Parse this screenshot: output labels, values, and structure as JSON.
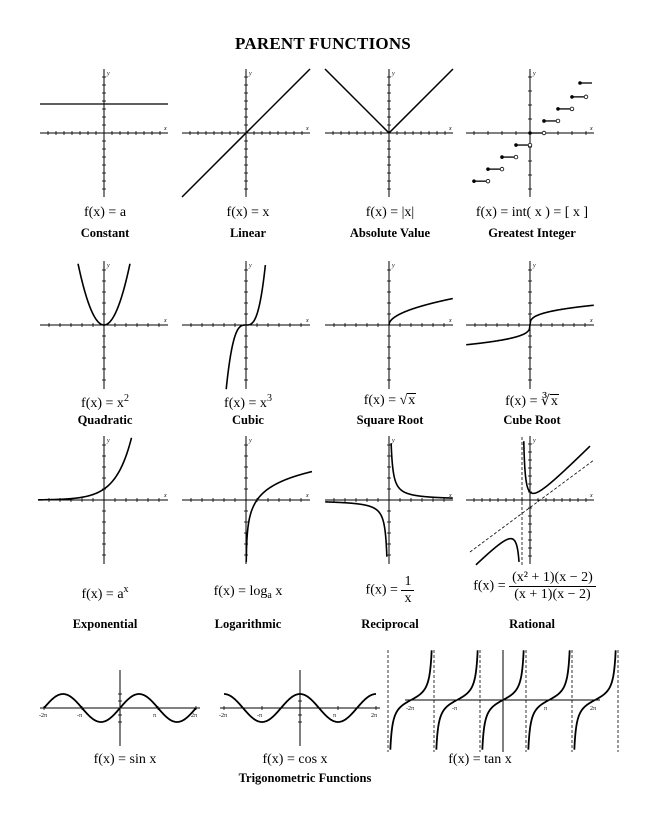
{
  "title": "PARENT FUNCTIONS",
  "functions": [
    {
      "formula": "f(x) = a",
      "label": "Constant"
    },
    {
      "formula": "f(x) = x",
      "label": "Linear"
    },
    {
      "formula": "f(x) = |x|",
      "label": "Absolute Value"
    },
    {
      "formula": "f(x) = int( x ) = [ x ]",
      "label": "Greatest Integer"
    },
    {
      "formula_prefix": "f(x) = x",
      "formula_exp": "2",
      "label": "Quadratic"
    },
    {
      "formula_prefix": "f(x) = x",
      "formula_exp": "3",
      "label": "Cubic"
    },
    {
      "formula_prefix": "f(x) = √",
      "formula_radicand": "x",
      "label": "Square Root"
    },
    {
      "formula_prefix": "f(x) = ∛",
      "formula_radicand": "x",
      "label": "Cube Root"
    },
    {
      "formula_prefix": "f(x) = a",
      "formula_exp": "x",
      "label": "Exponential"
    },
    {
      "formula_prefix": "f(x) = log",
      "formula_sub": "a",
      "formula_suffix": " x",
      "label": "Logarithmic"
    },
    {
      "formula_prefix": "f(x) = ",
      "formula_num": "1",
      "formula_den": "x",
      "label": "Reciprocal"
    },
    {
      "formula_prefix": "f(x) = ",
      "formula_num": "(x² + 1)(x − 2)",
      "formula_den": "(x + 1)(x − 2)",
      "label": "Rational"
    },
    {
      "formula": "f(x) = sin x"
    },
    {
      "formula": "f(x) = cos x"
    },
    {
      "formula": "f(x) = tan x"
    }
  ],
  "trig_group_label": "Trigonometric Functions",
  "axis_letters": {
    "x": "x",
    "y": "y"
  },
  "trig_ticks": {
    "neg2pi": "-2π",
    "negpi": "-π",
    "pi": "π",
    "pos2pi": "2π"
  }
}
